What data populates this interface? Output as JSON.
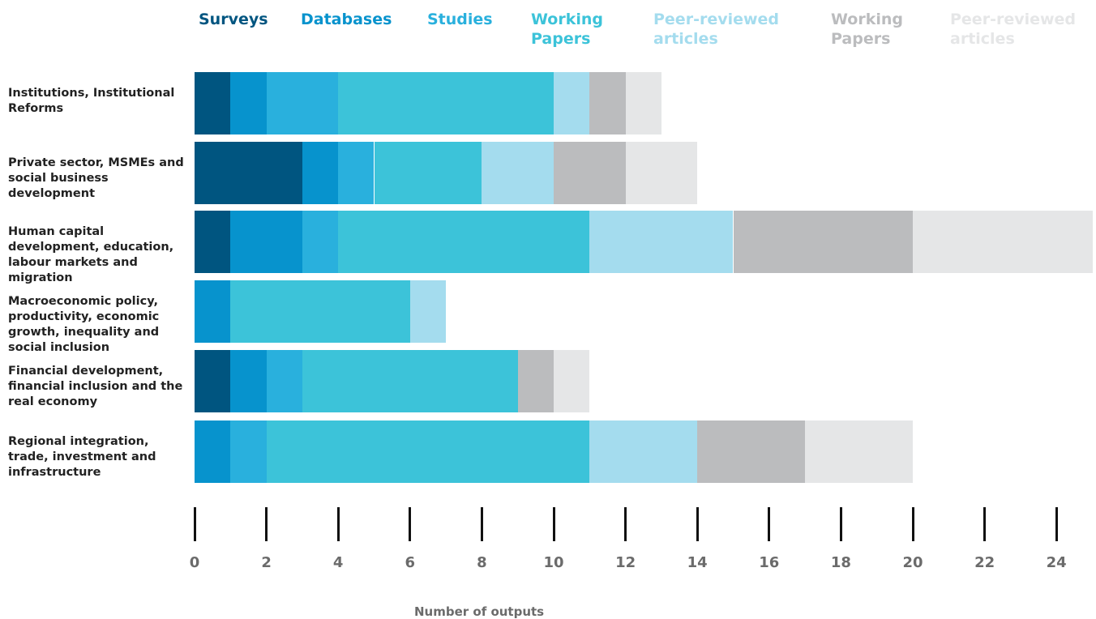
{
  "chart_data": {
    "type": "bar",
    "orientation": "horizontal",
    "stacked": true,
    "xlabel": "Number of outputs",
    "categories": [
      "Institutions, Institutional Reforms",
      "Private sector, MSMEs and social business development",
      "Human capital development, education, labour markets and migration",
      "Macroeconomic policy, productivity, economic growth, inequality and social inclusion",
      "Financial development, financial inclusion and the real economy",
      "Regional integration, trade, investment and infrastructure"
    ],
    "series": [
      {
        "name": "Surveys",
        "color": "#005580",
        "values": [
          1,
          3,
          1,
          0,
          1,
          0
        ]
      },
      {
        "name": "Databases",
        "color": "#0793cd",
        "values": [
          1,
          1,
          2,
          1,
          1,
          1
        ]
      },
      {
        "name": "Studies",
        "color": "#29b0dd",
        "values": [
          2,
          1,
          1,
          0,
          1,
          1
        ]
      },
      {
        "name": "Working Papers",
        "color": "#3cc3d9",
        "values": [
          6,
          3,
          7,
          5,
          6,
          9
        ]
      },
      {
        "name": "Peer-reviewed articles",
        "color": "#a4dcee",
        "values": [
          1,
          2,
          4,
          1,
          0,
          3
        ]
      },
      {
        "name": "Working Papers",
        "color": "#bbbcbe",
        "values": [
          1,
          2,
          5,
          0,
          1,
          3
        ]
      },
      {
        "name": "Peer-reviewed articles",
        "color": "#e5e6e7",
        "values": [
          1,
          2,
          5,
          0,
          1,
          3
        ]
      }
    ],
    "xlim": [
      0,
      25
    ],
    "xticks": [
      0,
      2,
      4,
      6,
      8,
      10,
      12,
      14,
      16,
      18,
      20,
      22,
      24
    ]
  }
}
